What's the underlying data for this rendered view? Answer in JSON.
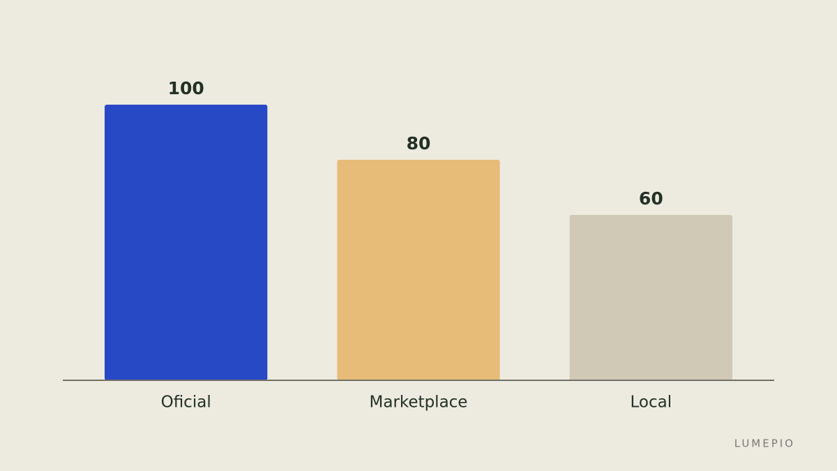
{
  "chart_data": {
    "type": "bar",
    "categories": [
      "Oficial",
      "Marketplace",
      "Local"
    ],
    "values": [
      100,
      80,
      60
    ],
    "colors": [
      "#2849c6",
      "#e6bc78",
      "#d0c9b6"
    ],
    "ylim": [
      0,
      100
    ],
    "watermark": "LUMEPIO"
  }
}
